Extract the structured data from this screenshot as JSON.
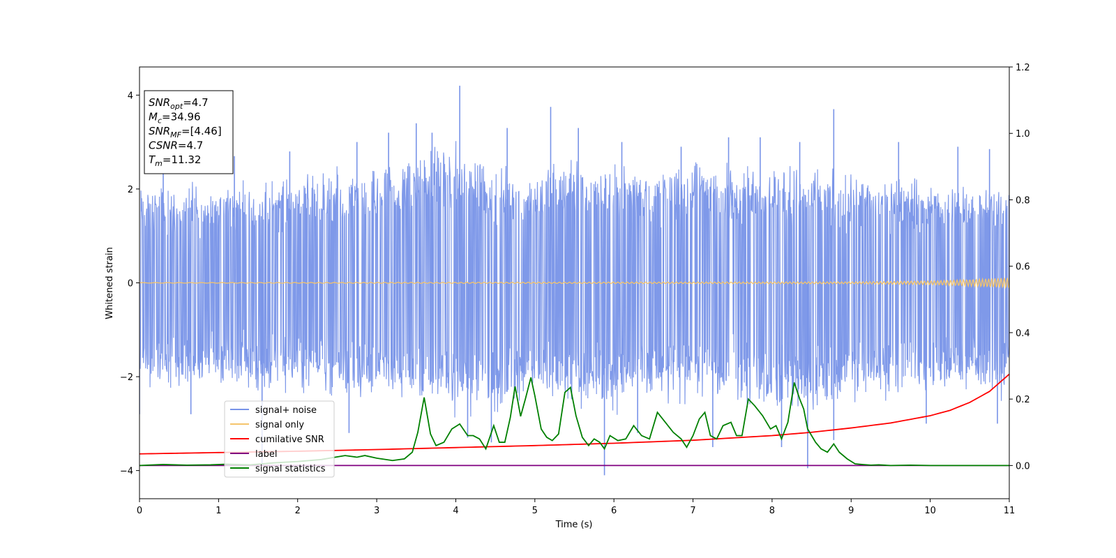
{
  "chart_data": {
    "type": "line",
    "xlabel": "Time (s)",
    "ylabel": "Whitened strain",
    "xlim": [
      0,
      11
    ],
    "ylim_left": [
      -4.6,
      4.6
    ],
    "ylim_right": [
      -0.1,
      1.2
    ],
    "x_ticks": [
      0,
      1,
      2,
      3,
      4,
      5,
      6,
      7,
      8,
      9,
      10,
      11
    ],
    "y_ticks_left": [
      -4,
      -2,
      0,
      2,
      4
    ],
    "y_ticks_right": [
      0.0,
      0.2,
      0.4,
      0.6,
      0.8,
      1.0,
      1.2
    ],
    "y_tick_labels_left": [
      "−4",
      "−2",
      "0",
      "2",
      "4"
    ],
    "y_tick_labels_right": [
      "0.0",
      "0.2",
      "0.4",
      "0.6",
      "0.8",
      "1.0",
      "1.2"
    ],
    "grid": false,
    "legend_position": "lower-left",
    "info_box": {
      "position": "top-left",
      "lines": [
        {
          "symbol": "SNR",
          "subscript": "opt",
          "value": "=4.7"
        },
        {
          "symbol": "M",
          "subscript": "c",
          "value": "=34.96"
        },
        {
          "symbol": "SNR",
          "subscript": "MF",
          "value": "=[4.46]"
        },
        {
          "symbol": "CSNR",
          "subscript": "",
          "value": "=4.7"
        },
        {
          "symbol": "T",
          "subscript": "m",
          "value": "=11.32"
        }
      ]
    },
    "series": [
      {
        "name": "signal+ noise",
        "axis": "left",
        "color": "#7893e8",
        "style": "noise",
        "envelope_x": [
          0,
          0.5,
          1,
          1.5,
          2,
          2.5,
          3,
          3.5,
          4,
          4.5,
          5,
          5.5,
          6,
          6.5,
          7,
          7.5,
          8,
          8.5,
          9,
          9.5,
          10,
          10.5,
          11
        ],
        "envelope_upper": [
          2.2,
          2.3,
          2.3,
          2.4,
          2.5,
          2.6,
          2.6,
          3.1,
          3.3,
          2.8,
          2.6,
          3.0,
          2.7,
          2.7,
          2.8,
          2.8,
          2.9,
          2.6,
          2.5,
          2.5,
          2.4,
          2.3,
          2.3
        ],
        "envelope_lower": [
          -2.4,
          -2.5,
          -2.4,
          -2.6,
          -2.5,
          -2.7,
          -2.6,
          -2.8,
          -3.0,
          -3.0,
          -2.8,
          -2.9,
          -3.1,
          -2.7,
          -2.8,
          -2.8,
          -3.1,
          -3.1,
          -2.7,
          -2.7,
          -2.6,
          -2.6,
          -2.7
        ],
        "spikes": [
          {
            "x": 0.3,
            "y": 2.6
          },
          {
            "x": 1.2,
            "y": 2.7
          },
          {
            "x": 1.9,
            "y": 2.8
          },
          {
            "x": 2.75,
            "y": 3.0
          },
          {
            "x": 3.15,
            "y": 3.2
          },
          {
            "x": 3.5,
            "y": 3.4
          },
          {
            "x": 3.7,
            "y": 3.2
          },
          {
            "x": 4.05,
            "y": 4.2
          },
          {
            "x": 4.65,
            "y": 3.3
          },
          {
            "x": 5.2,
            "y": 3.75
          },
          {
            "x": 5.55,
            "y": 3.3
          },
          {
            "x": 6.1,
            "y": 3.0
          },
          {
            "x": 6.85,
            "y": 2.9
          },
          {
            "x": 7.45,
            "y": 3.1
          },
          {
            "x": 7.85,
            "y": 3.1
          },
          {
            "x": 8.35,
            "y": 3.0
          },
          {
            "x": 8.78,
            "y": 3.7
          },
          {
            "x": 9.6,
            "y": 3.0
          },
          {
            "x": 10.35,
            "y": 2.9
          },
          {
            "x": 10.75,
            "y": 2.85
          },
          {
            "x": 0.0,
            "y": -2.8
          },
          {
            "x": 0.65,
            "y": -2.8
          },
          {
            "x": 1.55,
            "y": -3.9
          },
          {
            "x": 2.65,
            "y": -3.2
          },
          {
            "x": 4.15,
            "y": -3.3
          },
          {
            "x": 4.45,
            "y": -3.4
          },
          {
            "x": 5.88,
            "y": -4.1
          },
          {
            "x": 6.3,
            "y": -3.2
          },
          {
            "x": 7.25,
            "y": -3.5
          },
          {
            "x": 8.12,
            "y": -3.5
          },
          {
            "x": 8.45,
            "y": -3.95
          },
          {
            "x": 8.78,
            "y": -3.35
          },
          {
            "x": 9.95,
            "y": -3.0
          },
          {
            "x": 10.85,
            "y": -3.0
          }
        ]
      },
      {
        "name": "signal only",
        "axis": "left",
        "color": "#f5c46b",
        "style": "chirp",
        "x": [
          0,
          9,
          10,
          10.5,
          11
        ],
        "amplitude": [
          0.005,
          0.02,
          0.04,
          0.07,
          0.11
        ]
      },
      {
        "name": "cumilative SNR",
        "axis": "right",
        "color": "#ff0000",
        "style": "line",
        "x": [
          0,
          1,
          2,
          3,
          4,
          5,
          6,
          7,
          8,
          8.5,
          9,
          9.5,
          10,
          10.25,
          10.5,
          10.75,
          11
        ],
        "values": [
          0.035,
          0.039,
          0.043,
          0.048,
          0.054,
          0.06,
          0.067,
          0.076,
          0.09,
          0.1,
          0.113,
          0.128,
          0.15,
          0.166,
          0.19,
          0.223,
          0.275
        ]
      },
      {
        "name": "label",
        "axis": "right",
        "color": "#800080",
        "style": "line",
        "x": [
          0,
          11
        ],
        "values": [
          0.0,
          0.0
        ]
      },
      {
        "name": "signal statistics",
        "axis": "right",
        "color": "#008000",
        "style": "line",
        "x": [
          0,
          0.3,
          0.6,
          0.9,
          1.1,
          1.4,
          1.7,
          2.0,
          2.3,
          2.6,
          2.75,
          2.85,
          3.0,
          3.2,
          3.35,
          3.45,
          3.52,
          3.6,
          3.68,
          3.75,
          3.85,
          3.95,
          4.05,
          4.15,
          4.22,
          4.3,
          4.38,
          4.48,
          4.55,
          4.62,
          4.69,
          4.75,
          4.82,
          4.88,
          4.95,
          5.0,
          5.08,
          5.15,
          5.22,
          5.3,
          5.38,
          5.45,
          5.52,
          5.6,
          5.68,
          5.75,
          5.82,
          5.88,
          5.95,
          6.05,
          6.15,
          6.25,
          6.35,
          6.45,
          6.55,
          6.65,
          6.75,
          6.85,
          6.92,
          7.0,
          7.08,
          7.15,
          7.22,
          7.3,
          7.38,
          7.48,
          7.55,
          7.62,
          7.7,
          7.78,
          7.88,
          7.98,
          8.05,
          8.12,
          8.2,
          8.28,
          8.35,
          8.4,
          8.45,
          8.55,
          8.62,
          8.7,
          8.78,
          8.85,
          8.95,
          9.05,
          9.15,
          9.25,
          9.35,
          9.5,
          9.75,
          10.0,
          10.5,
          11.0
        ],
        "values": [
          0.0,
          0.003,
          0.001,
          0.002,
          0.004,
          0.002,
          0.008,
          0.012,
          0.018,
          0.03,
          0.025,
          0.03,
          0.022,
          0.015,
          0.02,
          0.04,
          0.1,
          0.205,
          0.095,
          0.06,
          0.07,
          0.11,
          0.125,
          0.09,
          0.09,
          0.08,
          0.05,
          0.12,
          0.07,
          0.07,
          0.145,
          0.238,
          0.148,
          0.2,
          0.265,
          0.21,
          0.11,
          0.085,
          0.075,
          0.095,
          0.22,
          0.235,
          0.15,
          0.085,
          0.06,
          0.08,
          0.07,
          0.05,
          0.09,
          0.075,
          0.08,
          0.12,
          0.09,
          0.08,
          0.16,
          0.13,
          0.1,
          0.08,
          0.055,
          0.09,
          0.14,
          0.16,
          0.09,
          0.08,
          0.12,
          0.13,
          0.09,
          0.09,
          0.2,
          0.18,
          0.15,
          0.11,
          0.12,
          0.08,
          0.13,
          0.25,
          0.2,
          0.17,
          0.11,
          0.07,
          0.05,
          0.04,
          0.065,
          0.04,
          0.02,
          0.005,
          0.003,
          0.001,
          0.002,
          0.0,
          0.001,
          0.0,
          0.0,
          0.0
        ]
      }
    ]
  }
}
